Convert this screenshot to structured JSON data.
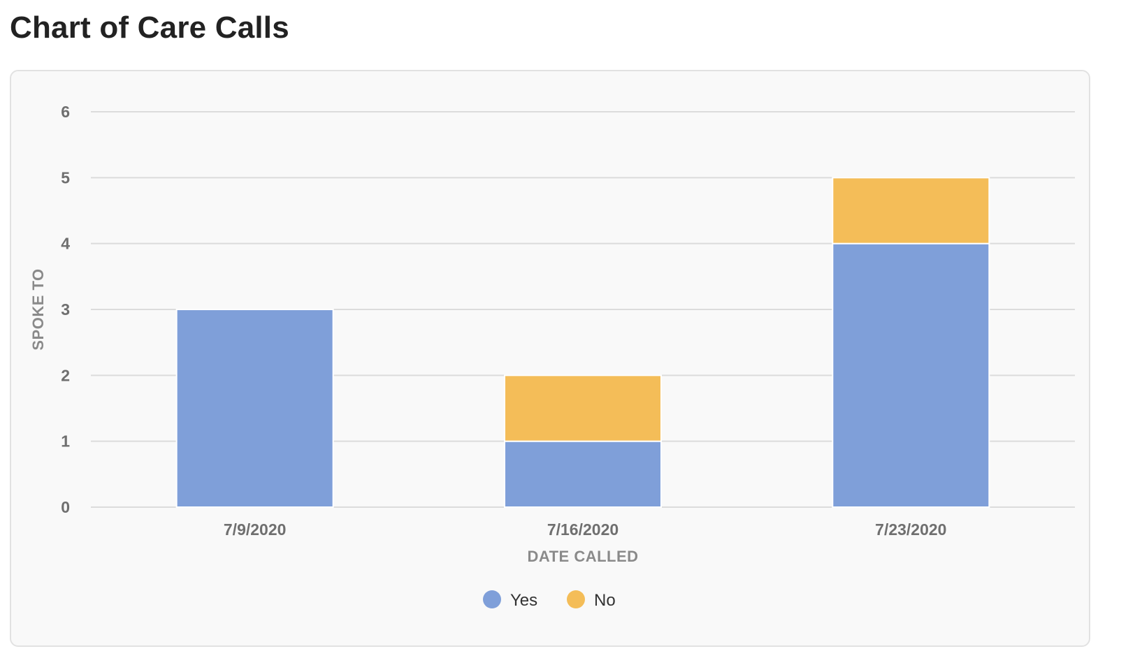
{
  "page": {
    "title": "Chart of Care Calls"
  },
  "chart_data": {
    "type": "bar",
    "stacked": true,
    "categories": [
      "7/9/2020",
      "7/16/2020",
      "7/23/2020"
    ],
    "series": [
      {
        "name": "Yes",
        "values": [
          3,
          1,
          4
        ],
        "color": "#7f9fd9"
      },
      {
        "name": "No",
        "values": [
          0,
          1,
          1
        ],
        "color": "#f4bd58"
      }
    ],
    "xlabel": "DATE CALLED",
    "ylabel": "SPOKE TO",
    "ylim": [
      0,
      6
    ],
    "yticks": [
      0,
      1,
      2,
      3,
      4,
      5,
      6
    ],
    "grid": true,
    "legend": "bottom-center"
  }
}
